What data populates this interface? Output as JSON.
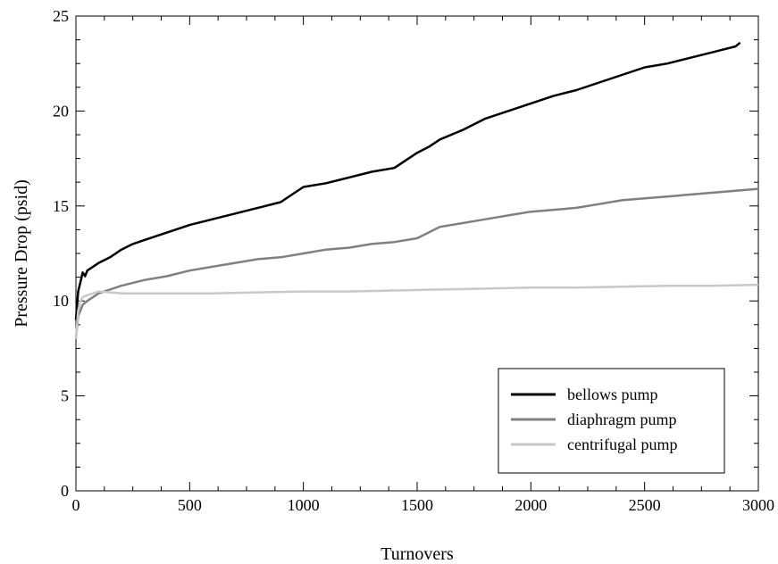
{
  "chart_data": {
    "type": "line",
    "title": "",
    "xlabel": "Turnovers",
    "ylabel": "Pressure Drop (psid)",
    "xlim": [
      0,
      3000
    ],
    "ylim": [
      0,
      25
    ],
    "xticks": [
      0,
      500,
      1000,
      1500,
      2000,
      2500,
      3000
    ],
    "yticks": [
      0,
      5,
      10,
      15,
      20,
      25
    ],
    "xtick_labels": [
      "0",
      "500",
      "1000",
      "1500",
      "2000",
      "2500",
      "3000"
    ],
    "ytick_labels": [
      "0",
      "5",
      "10",
      "15",
      "20",
      "25"
    ],
    "grid": false,
    "legend_position": "bottom-right",
    "series": [
      {
        "name": "bellows pump",
        "color": "#000000",
        "x": [
          0,
          10,
          20,
          30,
          40,
          50,
          75,
          100,
          150,
          200,
          250,
          300,
          400,
          500,
          600,
          700,
          800,
          900,
          950,
          1000,
          1100,
          1200,
          1300,
          1400,
          1450,
          1500,
          1550,
          1600,
          1700,
          1800,
          1900,
          2000,
          2100,
          2200,
          2300,
          2400,
          2500,
          2600,
          2700,
          2800,
          2900,
          2920
        ],
        "y": [
          9.0,
          10.5,
          11.0,
          11.5,
          11.3,
          11.6,
          11.8,
          12.0,
          12.3,
          12.7,
          13.0,
          13.2,
          13.6,
          14.0,
          14.3,
          14.6,
          14.9,
          15.2,
          15.6,
          16.0,
          16.2,
          16.5,
          16.8,
          17.0,
          17.4,
          17.8,
          18.1,
          18.5,
          19.0,
          19.6,
          20.0,
          20.4,
          20.8,
          21.1,
          21.5,
          21.9,
          22.3,
          22.5,
          22.8,
          23.1,
          23.4,
          23.6
        ]
      },
      {
        "name": "diaphragm pump",
        "color": "#808080",
        "x": [
          0,
          10,
          20,
          30,
          50,
          75,
          100,
          150,
          200,
          300,
          400,
          500,
          600,
          700,
          800,
          900,
          1000,
          1100,
          1200,
          1300,
          1400,
          1500,
          1550,
          1600,
          1700,
          1800,
          1900,
          2000,
          2100,
          2200,
          2300,
          2400,
          2500,
          2600,
          2700,
          2800,
          2900,
          3000
        ],
        "y": [
          8.0,
          9.2,
          9.5,
          9.8,
          10.0,
          10.2,
          10.4,
          10.6,
          10.8,
          11.1,
          11.3,
          11.6,
          11.8,
          12.0,
          12.2,
          12.3,
          12.5,
          12.7,
          12.8,
          13.0,
          13.1,
          13.3,
          13.6,
          13.9,
          14.1,
          14.3,
          14.5,
          14.7,
          14.8,
          14.9,
          15.1,
          15.3,
          15.4,
          15.5,
          15.6,
          15.7,
          15.8,
          15.9
        ]
      },
      {
        "name": "centrifugal pump",
        "color": "#c8c8c8",
        "x": [
          0,
          10,
          20,
          30,
          50,
          75,
          100,
          150,
          200,
          400,
          600,
          800,
          1000,
          1200,
          1400,
          1600,
          1800,
          2000,
          2200,
          2400,
          2600,
          2800,
          3000
        ],
        "y": [
          8.0,
          9.5,
          10.0,
          10.2,
          10.3,
          10.4,
          10.5,
          10.45,
          10.4,
          10.4,
          10.4,
          10.45,
          10.5,
          10.5,
          10.55,
          10.6,
          10.65,
          10.7,
          10.7,
          10.75,
          10.8,
          10.8,
          10.85
        ]
      }
    ]
  }
}
